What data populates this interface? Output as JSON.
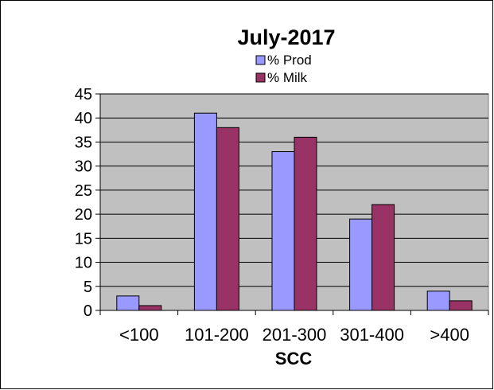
{
  "chart_data": {
    "type": "bar",
    "title": "July-2017",
    "xlabel": "SCC",
    "ylabel": "",
    "categories": [
      "<100",
      "101-200",
      "201-300",
      "301-400",
      ">400"
    ],
    "series": [
      {
        "name": "% Prod",
        "values": [
          3,
          41,
          33,
          19,
          4
        ],
        "color": "#9999FF"
      },
      {
        "name": "% Milk",
        "values": [
          1,
          38,
          36,
          22,
          2
        ],
        "color": "#993366"
      }
    ],
    "ylim": [
      0,
      45
    ],
    "yticks": [
      0,
      5,
      10,
      15,
      20,
      25,
      30,
      35,
      40,
      45
    ],
    "grid": true,
    "legend_position": "top-center",
    "plot_background": "#C0C0C0"
  }
}
